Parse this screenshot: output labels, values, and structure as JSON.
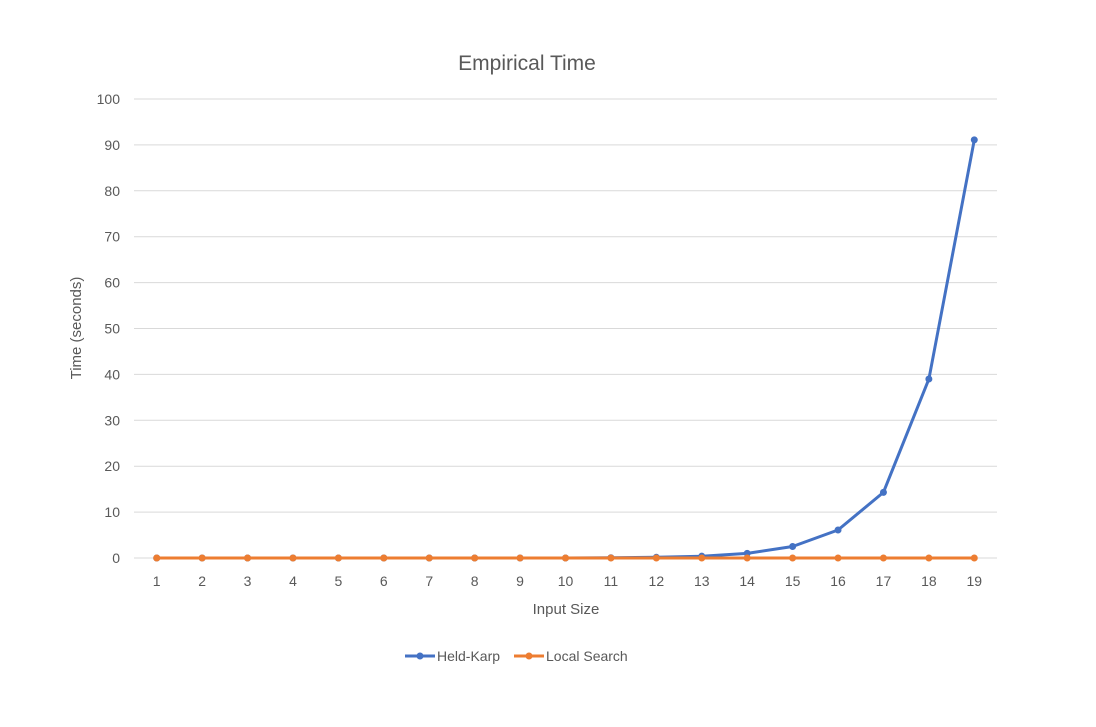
{
  "chart_data": {
    "type": "line",
    "title": "Empirical Time",
    "xlabel": "Input Size",
    "ylabel": "Time (seconds)",
    "categories": [
      "1",
      "2",
      "3",
      "4",
      "5",
      "6",
      "7",
      "8",
      "9",
      "10",
      "11",
      "12",
      "13",
      "14",
      "15",
      "16",
      "17",
      "18",
      "19"
    ],
    "ylim": [
      0,
      100
    ],
    "yticks": [
      0,
      10,
      20,
      30,
      40,
      50,
      60,
      70,
      80,
      90,
      100
    ],
    "grid": true,
    "legend_position": "bottom",
    "series": [
      {
        "name": "Held-Karp",
        "color": "#4472C4",
        "values": [
          0,
          0,
          0,
          0,
          0,
          0,
          0,
          0,
          0,
          0,
          0.05,
          0.15,
          0.4,
          1.0,
          2.5,
          6.1,
          14.3,
          39.0,
          91.1
        ]
      },
      {
        "name": "Local Search",
        "color": "#ED7D31",
        "values": [
          0,
          0,
          0,
          0,
          0,
          0,
          0,
          0,
          0,
          0,
          0,
          0,
          0,
          0,
          0,
          0,
          0,
          0,
          0
        ]
      }
    ]
  }
}
